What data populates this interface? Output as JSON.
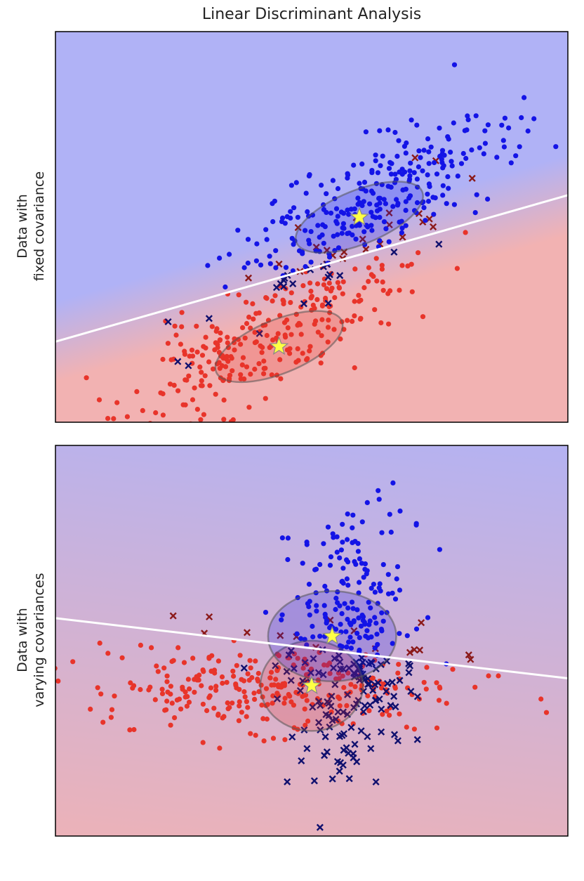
{
  "figure": {
    "title": "Linear Discriminant Analysis"
  },
  "colors": {
    "class0": "#e8342a",
    "class0_misclassified": "#8b1a1a",
    "class1": "#1414e6",
    "class1_misclassified": "#10106e",
    "region0": "#f2b2b2",
    "region1": "#b0b2f6",
    "boundary": "#ffffff",
    "mean_star": "#ffff44"
  },
  "chart_data": [
    {
      "type": "scatter",
      "ylabel_lines": [
        "Data with",
        "fixed covariance"
      ],
      "xlim": [
        -4.2,
        6.0
      ],
      "ylim": [
        -3.4,
        4.6
      ],
      "grid": false,
      "boundary": {
        "x": [
          -4.2,
          6.0
        ],
        "y": [
          -1.75,
          1.25
        ]
      },
      "means": [
        {
          "class": 0,
          "x": 0.25,
          "y": -1.85
        },
        {
          "class": 1,
          "x": 1.85,
          "y": 0.8
        }
      ],
      "ellipses": [
        {
          "class": 0,
          "cx": 0.25,
          "cy": -1.85,
          "rx": 1.35,
          "ry": 0.55,
          "angle_deg": -22
        },
        {
          "class": 1,
          "cx": 1.85,
          "cy": 0.8,
          "rx": 1.35,
          "ry": 0.55,
          "angle_deg": -22
        }
      ],
      "series": [
        {
          "class": 0,
          "marker": "dot",
          "n": 300,
          "mean": [
            0.1,
            -1.6
          ],
          "cov": [
            [
              1.9,
              1.0
            ],
            [
              1.0,
              0.9
            ]
          ],
          "seed": 11
        },
        {
          "class": 1,
          "marker": "dot",
          "n": 300,
          "mean": [
            2.0,
            1.0
          ],
          "cov": [
            [
              1.9,
              1.0
            ],
            [
              1.0,
              0.9
            ]
          ],
          "seed": 23
        }
      ]
    },
    {
      "type": "scatter",
      "ylabel_lines": [
        "Data with",
        "varying covariances"
      ],
      "xlim": [
        -5.0,
        5.0
      ],
      "ylim": [
        -2.6,
        2.6
      ],
      "grid": false,
      "boundary": {
        "x": [
          -5.0,
          5.0
        ],
        "y": [
          0.3,
          -0.5
        ]
      },
      "means": [
        {
          "class": 0,
          "x": 0.0,
          "y": -0.6
        },
        {
          "class": 1,
          "x": 0.4,
          "y": 0.06
        }
      ],
      "ellipses": [
        {
          "class": 0,
          "cx": 0.0,
          "cy": -0.6,
          "rx": 1.0,
          "ry": 0.6,
          "angle_deg": 0
        },
        {
          "class": 1,
          "cx": 0.4,
          "cy": 0.06,
          "rx": 1.25,
          "ry": 0.6,
          "angle_deg": 0
        }
      ],
      "series": [
        {
          "class": 0,
          "marker": "dot",
          "n": 300,
          "mean": [
            -0.6,
            -0.6
          ],
          "cov": [
            [
              3.2,
              0.0
            ],
            [
              0.0,
              0.09
            ]
          ],
          "seed": 37
        },
        {
          "class": 1,
          "marker": "dot",
          "n": 300,
          "mean": [
            0.7,
            0.0
          ],
          "cov": [
            [
              0.35,
              0.0
            ],
            [
              0.0,
              0.75
            ]
          ],
          "seed": 53
        }
      ]
    }
  ]
}
